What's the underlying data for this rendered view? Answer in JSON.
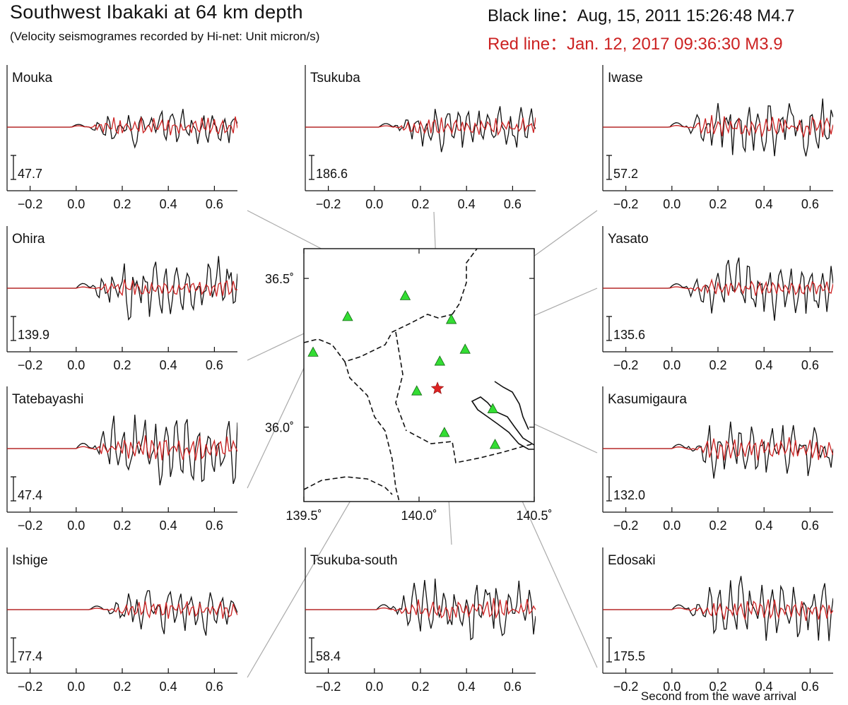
{
  "header": {
    "title": "Southwest Ibakaki at 64 km depth",
    "subtitle": "(Velocity seismogrames recorded by Hi-net: Unit micron/s)",
    "legend_black": "Black line：Aug, 15, 2011 15:26:48 M4.7",
    "legend_red": "Red line：Jan. 12, 2017 09:36:30 M3.9",
    "xlabel": "Second from the wave arrival"
  },
  "colors": {
    "black_line": "#111111",
    "red_line": "#cc2222",
    "station_marker": "#33dd33",
    "epicenter_marker": "#dd2222"
  },
  "chart_data": [
    {
      "type": "line",
      "station": "Mouka",
      "scale": "47.7",
      "xticks": [
        "−0.2",
        "0.0",
        "0.2",
        "0.4",
        "0.6"
      ],
      "xlim": [
        -0.3,
        0.7
      ],
      "arrival": 0.04,
      "amp_black": 1.0,
      "amp_red": 0.5
    },
    {
      "type": "line",
      "station": "Tsukuba",
      "scale": "186.6",
      "xticks": [
        "−0.2",
        "0.0",
        "0.2",
        "0.4",
        "0.6"
      ],
      "xlim": [
        -0.3,
        0.7
      ],
      "arrival": 0.08,
      "amp_black": 1.3,
      "amp_red": 0.5
    },
    {
      "type": "line",
      "station": "Iwase",
      "scale": "57.2",
      "xticks": [
        "−0.2",
        "0.0",
        "0.2",
        "0.4",
        "0.6"
      ],
      "xlim": [
        -0.3,
        0.7
      ],
      "arrival": 0.05,
      "amp_black": 1.6,
      "amp_red": 0.6
    },
    {
      "type": "line",
      "station": "Ohira",
      "scale": "139.9",
      "xticks": [
        "−0.2",
        "0.0",
        "0.2",
        "0.4",
        "0.6"
      ],
      "xlim": [
        -0.3,
        0.7
      ],
      "arrival": 0.06,
      "amp_black": 1.7,
      "amp_red": 0.45
    },
    {
      "type": "line",
      "station": "Yasato",
      "scale": "135.6",
      "xticks": [
        "−0.2",
        "0.0",
        "0.2",
        "0.4",
        "0.6"
      ],
      "xlim": [
        -0.3,
        0.7
      ],
      "arrival": 0.05,
      "amp_black": 1.6,
      "amp_red": 0.5
    },
    {
      "type": "line",
      "station": "Tatebayashi",
      "scale": "47.4",
      "xticks": [
        "−0.2",
        "0.0",
        "0.2",
        "0.4",
        "0.6"
      ],
      "xlim": [
        -0.3,
        0.7
      ],
      "arrival": 0.06,
      "amp_black": 1.9,
      "amp_red": 0.7
    },
    {
      "type": "line",
      "station": "Kasumigaura",
      "scale": "132.0",
      "xticks": [
        "−0.2",
        "0.0",
        "0.2",
        "0.4",
        "0.6"
      ],
      "xlim": [
        -0.3,
        0.7
      ],
      "arrival": 0.06,
      "amp_black": 1.5,
      "amp_red": 0.6
    },
    {
      "type": "line",
      "station": "Ishige",
      "scale": "77.4",
      "xticks": [
        "−0.2",
        "0.0",
        "0.2",
        "0.4",
        "0.6"
      ],
      "xlim": [
        -0.3,
        0.7
      ],
      "arrival": 0.12,
      "amp_black": 1.3,
      "amp_red": 0.5
    },
    {
      "type": "line",
      "station": "Tsukuba-south",
      "scale": "58.4",
      "xticks": [
        "−0.2",
        "0.0",
        "0.2",
        "0.4",
        "0.6"
      ],
      "xlim": [
        -0.3,
        0.7
      ],
      "arrival": 0.07,
      "amp_black": 1.8,
      "amp_red": 0.6
    },
    {
      "type": "line",
      "station": "Edosaki",
      "scale": "175.5",
      "xticks": [
        "−0.2",
        "0.0",
        "0.2",
        "0.4",
        "0.6"
      ],
      "xlim": [
        -0.3,
        0.7
      ],
      "arrival": 0.06,
      "amp_black": 1.7,
      "amp_red": 0.6
    }
  ],
  "map": {
    "xticks": [
      "139.5˚",
      "140.0˚",
      "140.5˚"
    ],
    "yticks": [
      "36.5˚",
      "36.0˚"
    ],
    "lon_range": [
      139.5,
      140.5
    ],
    "lat_range": [
      35.75,
      36.6
    ],
    "stations": [
      {
        "name": "Mouka",
        "lon": 139.94,
        "lat": 36.44
      },
      {
        "name": "Tsukuba",
        "lon": 140.09,
        "lat": 36.22
      },
      {
        "name": "Iwase",
        "lon": 140.14,
        "lat": 36.36
      },
      {
        "name": "Ohira",
        "lon": 139.69,
        "lat": 36.37
      },
      {
        "name": "Yasato",
        "lon": 140.2,
        "lat": 36.26
      },
      {
        "name": "Tatebayashi",
        "lon": 139.54,
        "lat": 36.25
      },
      {
        "name": "Kasumigaura",
        "lon": 140.32,
        "lat": 36.06
      },
      {
        "name": "Ishige",
        "lon": 139.99,
        "lat": 36.12
      },
      {
        "name": "Tsukuba-south",
        "lon": 140.11,
        "lat": 35.98
      },
      {
        "name": "Edosaki",
        "lon": 140.33,
        "lat": 35.94
      }
    ],
    "epicenter": {
      "lon": 140.08,
      "lat": 36.13
    }
  }
}
